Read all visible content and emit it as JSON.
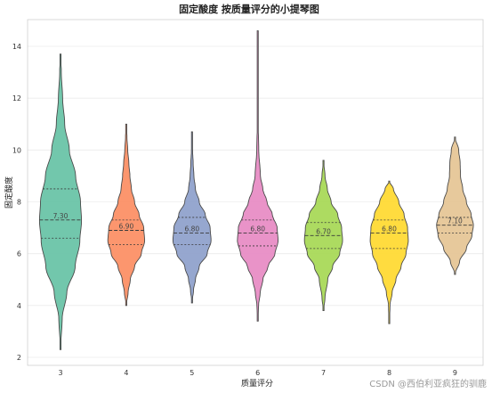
{
  "chart_data": {
    "type": "violin",
    "title": "固定酸度 按质量评分的小提琴图",
    "xlabel": "质量评分",
    "ylabel": "固定酸度",
    "ylim": [
      1.7,
      15.0
    ],
    "yticks": [
      2,
      4,
      6,
      8,
      10,
      12,
      14
    ],
    "grid": "y",
    "categories": [
      "3",
      "4",
      "5",
      "6",
      "7",
      "8",
      "9"
    ],
    "colors": [
      "#66c2a5",
      "#fc8d62",
      "#8da0cb",
      "#e78ac3",
      "#a6d854",
      "#ffd92f",
      "#e5c494"
    ],
    "medians": [
      7.3,
      6.9,
      6.8,
      6.8,
      6.7,
      6.8,
      7.1
    ],
    "median_labels": [
      "7.30",
      "6.90",
      "6.80",
      "6.80",
      "6.70",
      "6.80",
      "7.10"
    ],
    "q1": [
      6.6,
      6.35,
      6.35,
      6.3,
      6.2,
      6.2,
      6.8
    ],
    "q3": [
      8.5,
      7.3,
      7.4,
      7.3,
      7.2,
      7.3,
      7.4
    ],
    "extent_min": [
      2.3,
      4.0,
      4.1,
      3.4,
      3.8,
      3.3,
      5.2
    ],
    "extent_max": [
      13.7,
      11.0,
      10.7,
      14.6,
      9.6,
      8.8,
      10.5
    ],
    "density_profiles": [
      {
        "y": [
          2.3,
          3.5,
          4.5,
          5.5,
          6.5,
          7.3,
          8.0,
          9.0,
          10.0,
          11.0,
          12.0,
          13.0,
          13.7
        ],
        "w": [
          0.0,
          0.08,
          0.3,
          0.7,
          0.92,
          1.0,
          0.95,
          0.72,
          0.42,
          0.2,
          0.1,
          0.04,
          0.0
        ]
      },
      {
        "y": [
          4.0,
          4.5,
          5.0,
          5.5,
          6.0,
          6.5,
          7.0,
          7.5,
          8.0,
          8.5,
          9.0,
          9.5,
          10.0,
          10.5,
          11.0
        ],
        "w": [
          0.0,
          0.1,
          0.22,
          0.45,
          0.82,
          1.0,
          0.95,
          0.7,
          0.45,
          0.28,
          0.2,
          0.14,
          0.08,
          0.04,
          0.0
        ]
      },
      {
        "y": [
          4.1,
          4.6,
          5.0,
          5.5,
          6.0,
          6.5,
          7.0,
          7.5,
          8.0,
          8.5,
          9.0,
          9.5,
          10.0,
          10.7
        ],
        "w": [
          0.0,
          0.08,
          0.18,
          0.38,
          0.8,
          1.0,
          0.95,
          0.7,
          0.38,
          0.18,
          0.1,
          0.06,
          0.03,
          0.0
        ]
      },
      {
        "y": [
          3.4,
          4.0,
          4.5,
          5.0,
          5.5,
          6.0,
          6.5,
          7.0,
          7.5,
          8.0,
          8.5,
          9.0,
          10.0,
          11.0,
          12.0,
          13.0,
          14.6
        ],
        "w": [
          0.0,
          0.04,
          0.12,
          0.25,
          0.5,
          0.85,
          1.0,
          0.95,
          0.72,
          0.45,
          0.25,
          0.13,
          0.05,
          0.02,
          0.01,
          0.008,
          0.0
        ]
      },
      {
        "y": [
          3.8,
          4.3,
          5.0,
          5.5,
          6.0,
          6.5,
          7.0,
          7.5,
          8.0,
          8.5,
          9.0,
          9.6
        ],
        "w": [
          0.0,
          0.08,
          0.22,
          0.48,
          0.85,
          1.0,
          0.95,
          0.75,
          0.4,
          0.2,
          0.08,
          0.0
        ]
      },
      {
        "y": [
          3.3,
          4.0,
          4.5,
          5.0,
          5.5,
          6.0,
          6.5,
          7.0,
          7.5,
          8.0,
          8.5,
          8.8
        ],
        "w": [
          0.0,
          0.04,
          0.15,
          0.35,
          0.62,
          0.88,
          1.0,
          0.96,
          0.78,
          0.5,
          0.22,
          0.0
        ]
      },
      {
        "y": [
          5.2,
          5.7,
          6.2,
          6.7,
          7.1,
          7.5,
          8.0,
          8.5,
          9.0,
          9.5,
          10.0,
          10.5
        ],
        "w": [
          0.0,
          0.25,
          0.62,
          0.92,
          1.0,
          0.88,
          0.62,
          0.42,
          0.3,
          0.28,
          0.2,
          0.0
        ]
      }
    ],
    "max_halfwidth_data": [
      0.32,
      0.28,
      0.29,
      0.31,
      0.29,
      0.29,
      0.28
    ]
  },
  "watermark": "CSDN @西伯利亚疯狂的驯鹿"
}
